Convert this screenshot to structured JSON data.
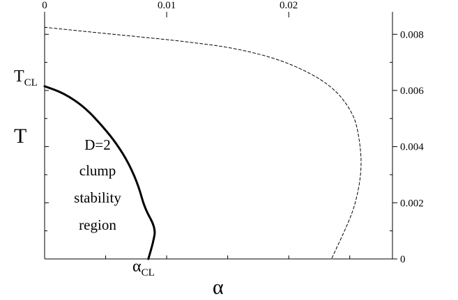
{
  "chart_data": {
    "type": "line",
    "xlabel": "α",
    "ylabel": "T",
    "xlim": [
      0,
      0.0285
    ],
    "ylim": [
      0,
      0.0088
    ],
    "x_ticks": [
      {
        "value": 0,
        "label": "0"
      },
      {
        "value": 0.01,
        "label": "0.01"
      },
      {
        "value": 0.02,
        "label": "0.02"
      }
    ],
    "y_ticks": [
      {
        "value": 0,
        "label": "0"
      },
      {
        "value": 0.002,
        "label": "0.002"
      },
      {
        "value": 0.004,
        "label": "0.004"
      },
      {
        "value": 0.006,
        "label": "0.006"
      },
      {
        "value": 0.008,
        "label": "0.008"
      }
    ],
    "series": [
      {
        "style": "solid-thick",
        "color": "#000000",
        "points": [
          [
            0,
            0.00615
          ],
          [
            0.0016,
            0.0059
          ],
          [
            0.0033,
            0.0054
          ],
          [
            0.0048,
            0.0047
          ],
          [
            0.0059,
            0.0041
          ],
          [
            0.0069,
            0.0034
          ],
          [
            0.0077,
            0.0026
          ],
          [
            0.0082,
            0.0018
          ],
          [
            0.0091,
            0.0011
          ],
          [
            0.0089,
            0.0006
          ],
          [
            0.0085,
            0.0
          ]
        ]
      },
      {
        "style": "dashed-thin",
        "color": "#000000",
        "points": [
          [
            0,
            0.00825
          ],
          [
            0.004,
            0.00807
          ],
          [
            0.008,
            0.0079
          ],
          [
            0.012,
            0.00772
          ],
          [
            0.016,
            0.00748
          ],
          [
            0.02,
            0.007
          ],
          [
            0.0235,
            0.0062
          ],
          [
            0.0253,
            0.0052
          ],
          [
            0.0258,
            0.0043
          ],
          [
            0.026,
            0.0032
          ],
          [
            0.0255,
            0.002
          ],
          [
            0.0248,
            0.0012
          ],
          [
            0.0235,
            0.0
          ]
        ]
      }
    ],
    "annotations": {
      "t_cl_main": "T",
      "t_cl_sub": "CL",
      "alpha_cl_main": "α",
      "alpha_cl_sub": "CL",
      "region_lines": [
        "D=2",
        "clump",
        "stability",
        "region"
      ]
    }
  }
}
